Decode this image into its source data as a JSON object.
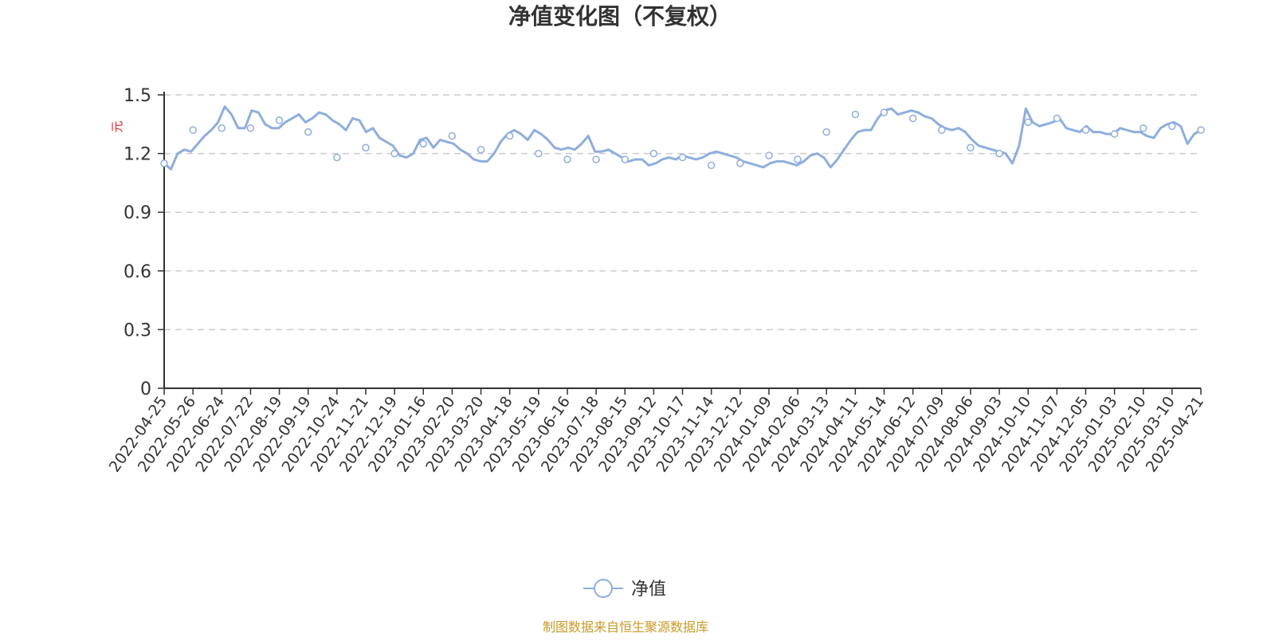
{
  "chart_data": {
    "type": "line",
    "title": "净值变化图（不复权）",
    "ylabel": "元",
    "ylim": [
      0,
      1.5
    ],
    "yticks": [
      "0",
      "0.3",
      "0.6",
      "0.9",
      "1.2",
      "1.5"
    ],
    "grid": "horizontal-dashed",
    "legend_position": "bottom-center",
    "categories": [
      "2022-04-25",
      "2022-05-26",
      "2022-06-24",
      "2022-07-22",
      "2022-08-19",
      "2022-09-19",
      "2022-10-24",
      "2022-11-21",
      "2022-12-19",
      "2023-01-16",
      "2023-02-20",
      "2023-03-20",
      "2023-04-18",
      "2023-05-19",
      "2023-06-16",
      "2023-07-18",
      "2023-08-15",
      "2023-09-12",
      "2023-10-17",
      "2023-11-14",
      "2023-12-12",
      "2024-01-09",
      "2024-02-06",
      "2024-03-13",
      "2024-04-11",
      "2024-05-14",
      "2024-06-12",
      "2024-07-09",
      "2024-08-06",
      "2024-09-03",
      "2024-10-10",
      "2024-11-07",
      "2024-12-05",
      "2025-01-03",
      "2025-02-10",
      "2025-03-10",
      "2025-04-21"
    ],
    "series": [
      {
        "name": "净值",
        "color": "#8eaedd",
        "values": [
          1.15,
          1.32,
          1.33,
          1.33,
          1.37,
          1.31,
          1.18,
          1.23,
          1.2,
          1.25,
          1.29,
          1.22,
          1.29,
          1.2,
          1.17,
          1.17,
          1.17,
          1.2,
          1.18,
          1.14,
          1.15,
          1.19,
          1.17,
          1.31,
          1.4,
          1.41,
          1.38,
          1.32,
          1.23,
          1.2,
          1.36,
          1.38,
          1.32,
          1.3,
          1.33,
          1.34,
          1.32
        ],
        "dense": [
          1.15,
          1.12,
          1.2,
          1.22,
          1.21,
          1.25,
          1.29,
          1.32,
          1.36,
          1.44,
          1.4,
          1.33,
          1.33,
          1.42,
          1.41,
          1.35,
          1.33,
          1.33,
          1.36,
          1.38,
          1.4,
          1.36,
          1.38,
          1.41,
          1.4,
          1.37,
          1.35,
          1.32,
          1.38,
          1.37,
          1.31,
          1.33,
          1.28,
          1.26,
          1.24,
          1.19,
          1.18,
          1.2,
          1.27,
          1.28,
          1.23,
          1.27,
          1.26,
          1.25,
          1.22,
          1.2,
          1.17,
          1.16,
          1.16,
          1.2,
          1.26,
          1.3,
          1.32,
          1.3,
          1.27,
          1.32,
          1.3,
          1.27,
          1.23,
          1.22,
          1.23,
          1.22,
          1.25,
          1.29,
          1.21,
          1.21,
          1.22,
          1.2,
          1.18,
          1.16,
          1.17,
          1.17,
          1.14,
          1.15,
          1.17,
          1.18,
          1.17,
          1.19,
          1.18,
          1.17,
          1.18,
          1.2,
          1.21,
          1.2,
          1.19,
          1.18,
          1.16,
          1.15,
          1.14,
          1.13,
          1.15,
          1.16,
          1.16,
          1.15,
          1.14,
          1.16,
          1.19,
          1.2,
          1.18,
          1.13,
          1.17,
          1.22,
          1.27,
          1.31,
          1.32,
          1.32,
          1.38,
          1.42,
          1.43,
          1.4,
          1.41,
          1.42,
          1.41,
          1.39,
          1.38,
          1.35,
          1.33,
          1.32,
          1.33,
          1.31,
          1.27,
          1.24,
          1.23,
          1.22,
          1.21,
          1.2,
          1.15,
          1.24,
          1.43,
          1.36,
          1.34,
          1.35,
          1.36,
          1.38,
          1.33,
          1.32,
          1.31,
          1.34,
          1.31,
          1.31,
          1.3,
          1.3,
          1.33,
          1.32,
          1.31,
          1.31,
          1.29,
          1.28,
          1.33,
          1.35,
          1.36,
          1.34,
          1.25,
          1.3,
          1.32
        ]
      }
    ]
  },
  "legend": {
    "label": "净值"
  },
  "source": {
    "text": "制图数据来自恒生聚源数据库",
    "color": "#c89a28"
  },
  "colors": {
    "axis": "#333333",
    "grid": "#cccccc",
    "unit": "#e02020"
  }
}
